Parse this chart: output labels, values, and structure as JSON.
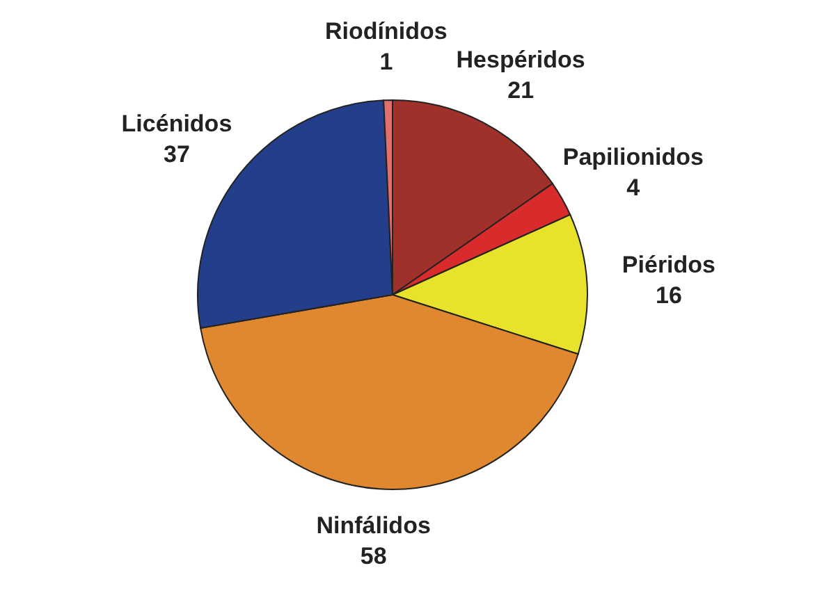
{
  "chart_data": {
    "type": "pie",
    "categories": [
      "Hespéridos",
      "Papilionidos",
      "Piéridos",
      "Ninfálidos",
      "Licénidos",
      "Riodínidos"
    ],
    "values": [
      21,
      4,
      16,
      58,
      37,
      1
    ],
    "colors": [
      "#a0302a",
      "#d92b2b",
      "#e8e22a",
      "#e08830",
      "#233f8c",
      "#e07070"
    ],
    "data_labels": true
  }
}
